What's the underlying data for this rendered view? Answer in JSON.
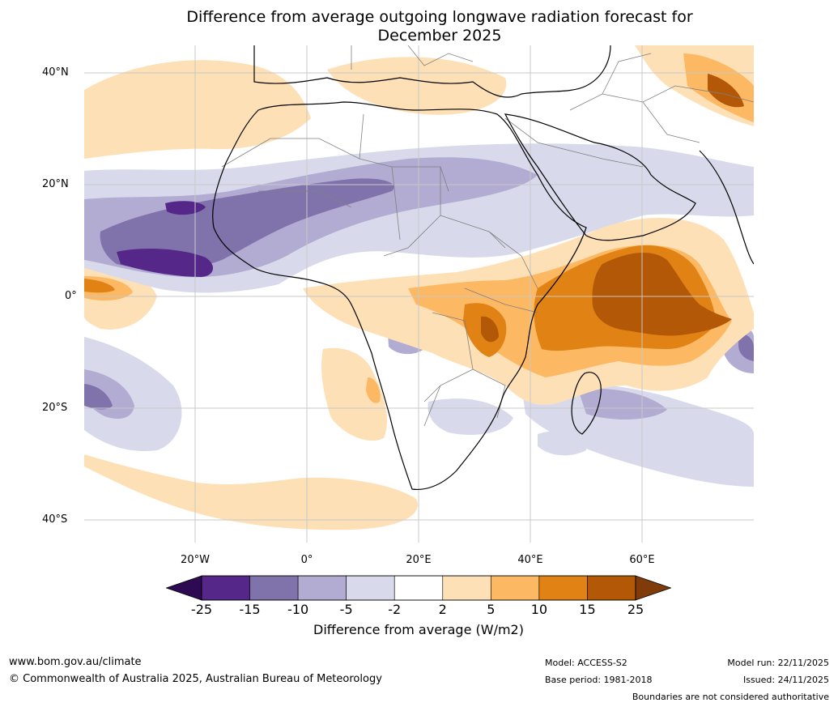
{
  "title_line1": "Difference from average outgoing longwave radiation forecast for",
  "title_line2": "December 2025",
  "map": {
    "latitude_labels": [
      "40°N",
      "20°N",
      "0°",
      "20°S",
      "40°S"
    ],
    "longitude_labels": [
      "20°W",
      "0°",
      "20°E",
      "40°E",
      "60°E"
    ],
    "colors": {
      "ocean": "#ffffff",
      "land_border": "#808080",
      "coastline": "#000000",
      "gridline": "#c8c8c8"
    },
    "features": [
      {
        "name": "strong-negative-anomaly-west-africa",
        "level": -15
      },
      {
        "name": "negative-anomaly-sahel-band",
        "level": -10
      },
      {
        "name": "positive-anomaly-east-africa",
        "level": 10
      },
      {
        "name": "strong-positive-anomaly-indian-ocean",
        "level": 15
      },
      {
        "name": "negative-anomaly-south-atlantic",
        "level": -10
      },
      {
        "name": "positive-anomaly-middle-east",
        "level": 10
      }
    ]
  },
  "colorbar": {
    "ticks": [
      "-25",
      "-15",
      "-10",
      "-5",
      "-2",
      "2",
      "5",
      "10",
      "15",
      "25"
    ],
    "colors": [
      "#2d0a52",
      "#542788",
      "#8073ac",
      "#b2abd2",
      "#d8daeb",
      "#ffffff",
      "#fee0b6",
      "#fdb863",
      "#e08214",
      "#b35806",
      "#7f3b08"
    ],
    "label": "Difference from average (W/m2)"
  },
  "footer": {
    "website": "www.bom.gov.au/climate",
    "copyright": "© Commonwealth of Australia 2025, Australian Bureau of Meteorology",
    "model": "Model: ACCESS-S2",
    "base_period": "Base period: 1981-2018",
    "model_run": "Model run: 22/11/2025",
    "issued": "Issued: 24/11/2025",
    "disclaimer": "Boundaries are not considered authoritative"
  }
}
